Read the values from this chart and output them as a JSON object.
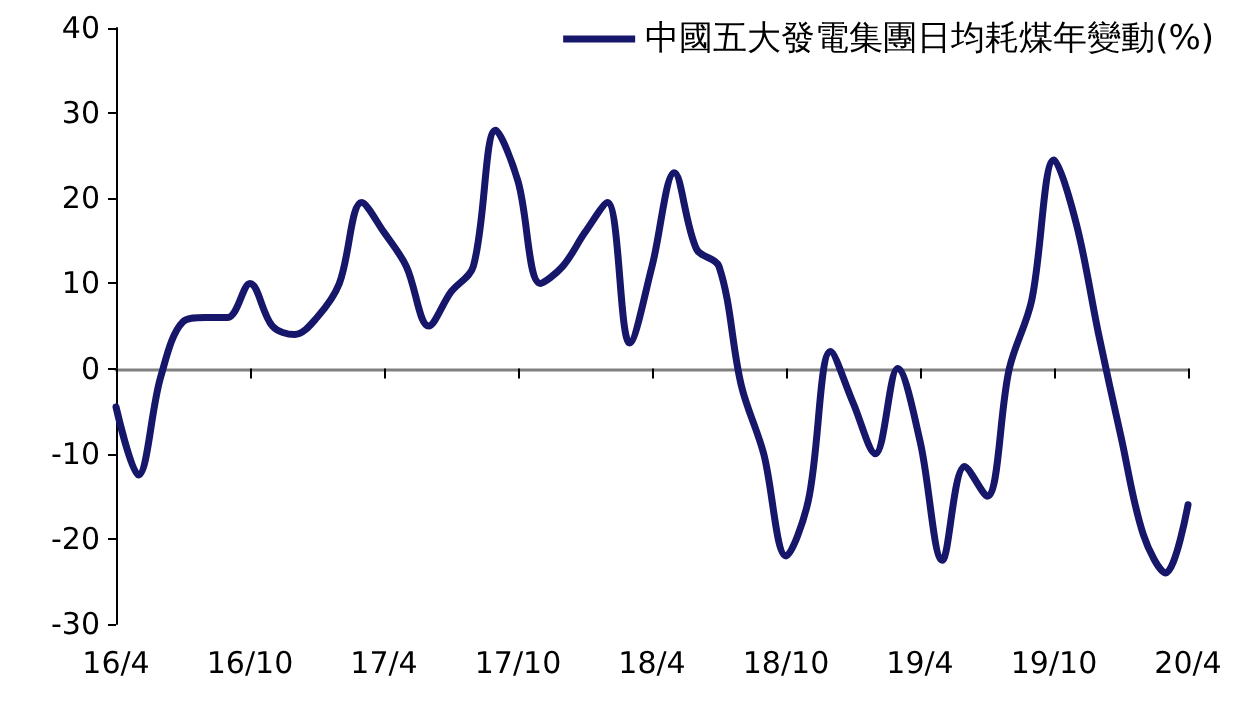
{
  "chart_data": {
    "type": "line",
    "categories": [
      "16/4",
      null,
      null,
      null,
      null,
      null,
      "16/10",
      null,
      null,
      null,
      null,
      null,
      "17/4",
      null,
      null,
      null,
      null,
      null,
      "17/10",
      null,
      null,
      null,
      null,
      null,
      "18/4",
      null,
      null,
      null,
      null,
      null,
      "18/10",
      null,
      null,
      null,
      null,
      null,
      "19/4",
      null,
      null,
      null,
      null,
      null,
      "19/10",
      null,
      null,
      null,
      null,
      null,
      "20/4"
    ],
    "series": [
      {
        "name": "中國五大發電集團日均耗煤年變動(%)",
        "color": "#16166a",
        "values": [
          -4.5,
          -12.5,
          -1,
          5.5,
          6,
          6,
          10,
          5,
          4,
          6,
          10,
          19.5,
          16,
          12,
          5,
          9,
          12,
          28,
          22,
          10,
          12,
          16,
          19.5,
          3,
          12,
          23,
          14,
          12,
          -2,
          -10,
          -22,
          -15.5,
          2,
          -4,
          -10,
          0,
          -8.5,
          -22.5,
          -11.5,
          -15,
          0,
          8,
          24.5,
          17,
          4,
          -8,
          -19.5,
          -24,
          -16
        ]
      }
    ],
    "ylim": [
      -30,
      40
    ],
    "yticks": [
      -30,
      -20,
      -10,
      0,
      10,
      20,
      30,
      40
    ],
    "legend": "top right",
    "marker": "none",
    "line_style": "solid"
  }
}
